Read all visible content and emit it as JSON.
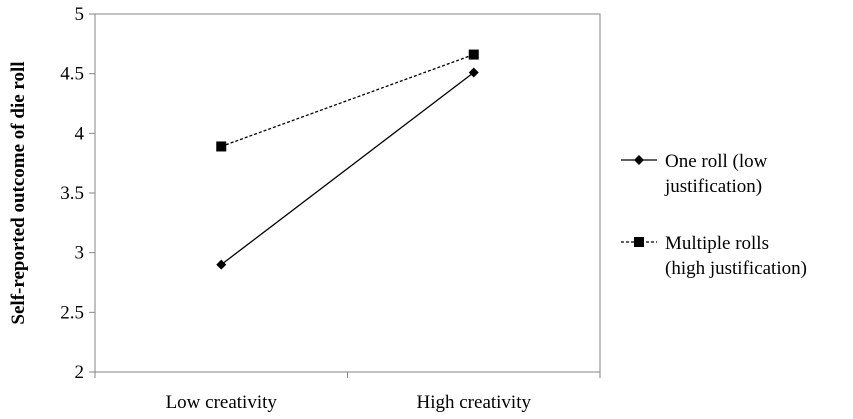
{
  "chart_data": {
    "type": "line",
    "title": "",
    "xlabel": "",
    "ylabel": "Self-reported outcome of die roll",
    "categories": [
      "Low creativity",
      "High creativity"
    ],
    "ylim": [
      2,
      5
    ],
    "yticks": [
      "2",
      "2.5",
      "3",
      "3.5",
      "4",
      "4.5",
      "5"
    ],
    "grid": false,
    "legend_position": "right",
    "series": [
      {
        "name": "One roll (low justification)",
        "legend_lines": [
          "One roll (low",
          "justification)"
        ],
        "values": [
          2.9,
          4.51
        ],
        "line_style": "solid",
        "marker": "diamond",
        "color": "#000000"
      },
      {
        "name": "Multiple rolls (high justification)",
        "legend_lines": [
          "Multiple rolls",
          "(high justification)"
        ],
        "values": [
          3.89,
          4.66
        ],
        "line_style": "dashed",
        "marker": "square",
        "color": "#000000"
      }
    ]
  }
}
